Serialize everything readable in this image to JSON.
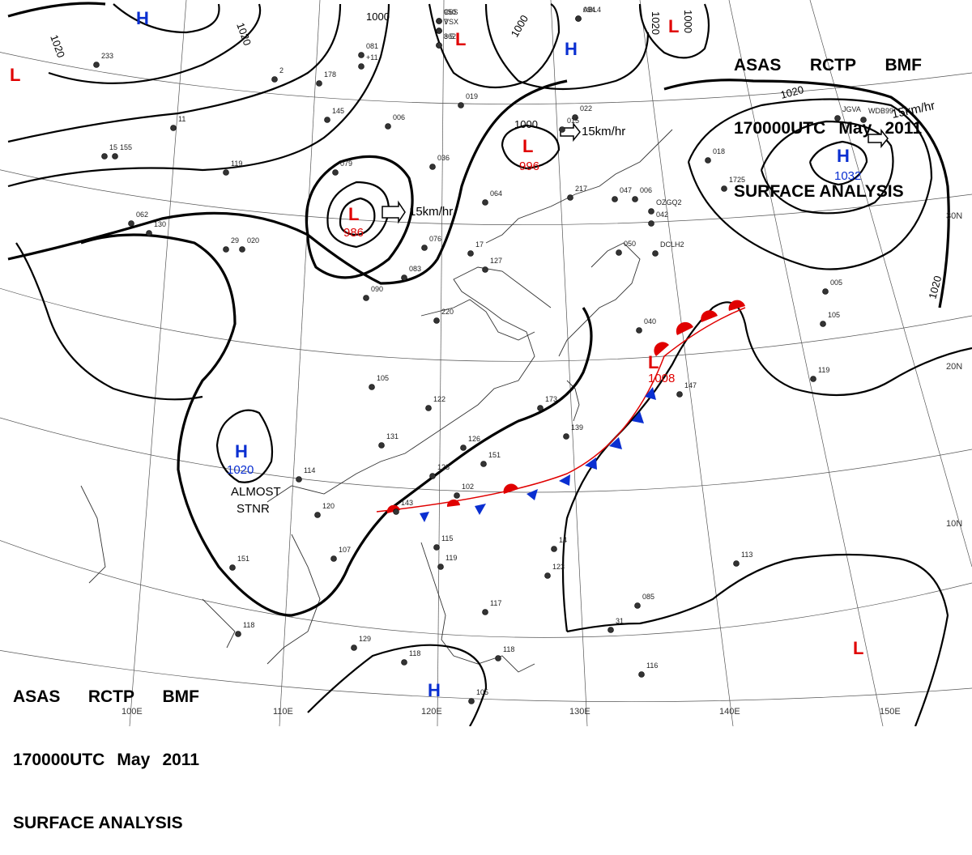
{
  "header": {
    "line1": [
      "ASAS",
      "RCTP",
      "BMF"
    ],
    "line2": [
      "170000UTC",
      "May",
      "2011"
    ],
    "line3": "SURFACE ANALYSIS"
  },
  "grid_labels": {
    "lon": [
      "100E",
      "110E",
      "120E",
      "130E",
      "140E",
      "150E"
    ],
    "lat": [
      "30N",
      "20N",
      "10N"
    ]
  },
  "isobar_labels": [
    "1020",
    "1020",
    "1000",
    "1000",
    "1000",
    "1020",
    "1020",
    "1020",
    "1000"
  ],
  "pressure_centers": [
    {
      "type": "H",
      "value": ""
    },
    {
      "type": "L",
      "value": ""
    },
    {
      "type": "L",
      "value": ""
    },
    {
      "type": "H",
      "value": ""
    },
    {
      "type": "L",
      "value": ""
    },
    {
      "type": "L",
      "value": "996"
    },
    {
      "type": "L",
      "value": "986"
    },
    {
      "type": "H",
      "value": "1032"
    },
    {
      "type": "H",
      "value": "1020"
    },
    {
      "type": "L",
      "value": "1008"
    },
    {
      "type": "H",
      "value": ""
    },
    {
      "type": "L",
      "value": ""
    }
  ],
  "motion_labels": [
    "15km/hr",
    "15km/hr",
    "15km/hr"
  ],
  "notes": [
    "ALMOST",
    "STNR"
  ],
  "station_texts": [
    "7",
    "950",
    "8 5",
    "094",
    "2",
    "233",
    "178",
    "081",
    "+11",
    "019",
    "022",
    "15",
    "155",
    "145",
    "11",
    "006",
    "015",
    "119",
    "079",
    "036",
    "018",
    "064",
    "217",
    "076",
    "047",
    "006",
    "042",
    "062",
    "130",
    "29",
    "020",
    "17",
    "050",
    "083",
    "127",
    "005",
    "090",
    "220",
    "040",
    "105",
    "119",
    "122",
    "173",
    "147",
    "131",
    "126",
    "151",
    "139",
    "114",
    "120",
    "143",
    "128",
    "102",
    "115",
    "14",
    "107",
    "151",
    "119",
    "117",
    "085",
    "118",
    "129",
    "118",
    "118",
    "116",
    "105",
    "113",
    "123",
    "31",
    "105",
    "1725",
    "OZGQ2",
    "DCLH2",
    "JGVA",
    "WDB99",
    "VSX",
    "C6S",
    "362",
    "ABL4"
  ],
  "colors": {
    "low": "#e00000",
    "high": "#0a2fd1",
    "warm_front": "#e00000",
    "cold_front": "#0a2fd1"
  }
}
